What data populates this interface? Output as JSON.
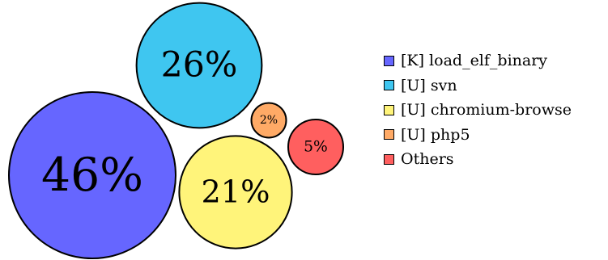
{
  "chart_data": {
    "type": "bubble",
    "bubbles": [
      {
        "name": "[K] load_elf_binary",
        "value": 46,
        "label": "46%",
        "color": "#6666ff"
      },
      {
        "name": "[U] svn",
        "value": 26,
        "label": "26%",
        "color": "#3fc6f0"
      },
      {
        "name": "[U] chromium-browse",
        "value": 21,
        "label": "21%",
        "color": "#fff47a"
      },
      {
        "name": "[U] php5",
        "value": 2,
        "label": "2%",
        "color": "#ffaa66"
      },
      {
        "name": "Others",
        "value": 5,
        "label": "5%",
        "color": "#ff5f5f"
      }
    ],
    "legend_position": "right"
  }
}
